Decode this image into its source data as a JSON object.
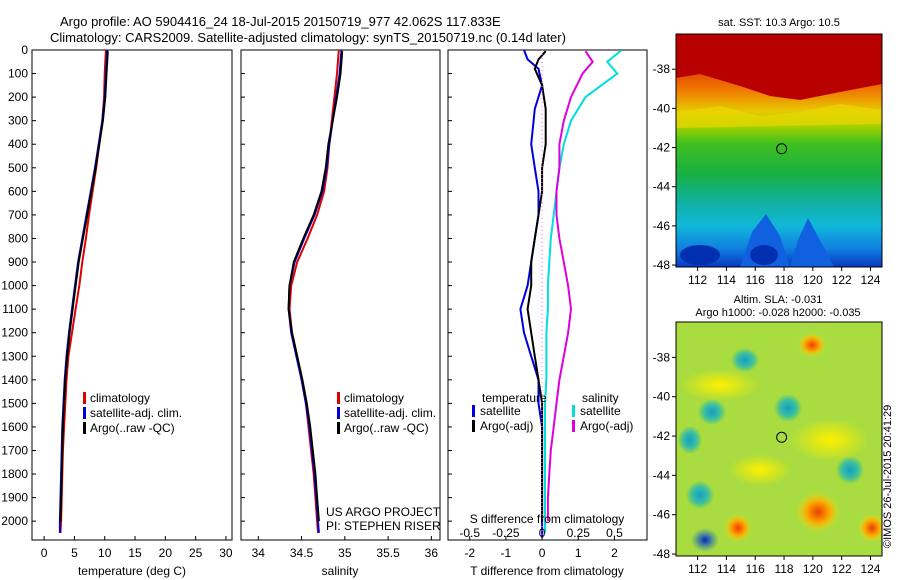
{
  "header": {
    "line1": "Argo profile: AO 5904416_24 18-Jul-2015 20150719_977 42.062S 117.833E",
    "line2": "Climatology: CARS2009. Satellite-adjusted climatology: synTS_20150719.nc (0.14d later)"
  },
  "credits": {
    "project": "US ARGO PROJECT",
    "pi": "PI: STEPHEN RISER",
    "imos": "©IMOS 26-Jul-2015 20:41:29"
  },
  "colors": {
    "climatology": "#dd0000",
    "satellite": "#0000dd",
    "argo": "#000000",
    "sal_satellite": "#00dddd",
    "sal_argo": "#dd00dd",
    "circle": "#000000"
  },
  "chart_data": [
    {
      "id": "temperature",
      "type": "line",
      "xlabel": "temperature (deg C)",
      "ylabel": "",
      "xlim": [
        -2,
        31
      ],
      "ylim": [
        2080,
        0
      ],
      "x_ticks": [
        0,
        5,
        10,
        15,
        20,
        25,
        30
      ],
      "x_tick_labels": [
        "0",
        "5",
        "10",
        "15",
        "20",
        "25",
        "30"
      ],
      "y_ticks": [
        0,
        100,
        200,
        300,
        400,
        500,
        600,
        700,
        800,
        900,
        1000,
        1100,
        1200,
        1300,
        1400,
        1500,
        1600,
        1700,
        1800,
        1900,
        2000
      ],
      "y_tick_labels": [
        "0",
        "100",
        "200",
        "300",
        "400",
        "500",
        "600",
        "700",
        "800",
        "900",
        "1000",
        "1100",
        "1200",
        "1300",
        "1400",
        "1500",
        "1600",
        "1700",
        "1800",
        "1900",
        "2000"
      ],
      "legend": [
        "climatology",
        "satellite-adj. clim.",
        "Argo(..raw -QC)"
      ],
      "legend_position": "lower-right",
      "series": [
        {
          "name": "climatology",
          "color_key": "climatology",
          "x": [
            10.2,
            10.1,
            10.0,
            9.9,
            9.6,
            9.1,
            8.6,
            8.0,
            7.4,
            6.9,
            6.3,
            5.8,
            5.2,
            4.6,
            4.0,
            3.7,
            3.5,
            3.3,
            3.1,
            3.0,
            2.9,
            2.8,
            2.7
          ],
          "y": [
            0,
            50,
            100,
            200,
            300,
            400,
            500,
            600,
            700,
            800,
            900,
            1000,
            1100,
            1200,
            1300,
            1400,
            1500,
            1600,
            1700,
            1800,
            1900,
            2000,
            2050
          ]
        },
        {
          "name": "satellite-adj. clim.",
          "color_key": "satellite",
          "x": [
            10.4,
            10.3,
            10.2,
            10.0,
            9.6,
            9.0,
            8.4,
            7.7,
            7.0,
            6.3,
            5.6,
            5.1,
            4.6,
            4.1,
            3.7,
            3.4,
            3.2,
            3.0,
            2.9,
            2.8,
            2.7,
            2.6,
            2.6
          ],
          "y": [
            0,
            50,
            100,
            200,
            300,
            400,
            500,
            600,
            700,
            800,
            900,
            1000,
            1100,
            1200,
            1300,
            1400,
            1500,
            1600,
            1700,
            1800,
            1900,
            2000,
            2050
          ]
        },
        {
          "name": "Argo(..raw -QC)",
          "color_key": "argo",
          "x": [
            10.5,
            10.4,
            10.3,
            10.1,
            9.7,
            9.1,
            8.5,
            7.8,
            7.1,
            6.4,
            5.7,
            5.2,
            4.7,
            4.2,
            3.8,
            3.5,
            3.3,
            3.1,
            3.0,
            2.9,
            2.8,
            2.7
          ],
          "y": [
            5,
            50,
            100,
            200,
            300,
            400,
            500,
            600,
            700,
            800,
            900,
            1000,
            1100,
            1200,
            1300,
            1400,
            1500,
            1600,
            1700,
            1800,
            1900,
            2000
          ]
        }
      ]
    },
    {
      "id": "salinity",
      "type": "line",
      "xlabel": "salinity",
      "ylabel": "",
      "xlim": [
        33.8,
        36.1
      ],
      "ylim": [
        2080,
        0
      ],
      "x_ticks": [
        34,
        34.5,
        35,
        35.5,
        36
      ],
      "x_tick_labels": [
        "34",
        "34.5",
        "35",
        "35.5",
        "36"
      ],
      "legend": [
        "climatology",
        "satellite-adj. clim.",
        "Argo(..raw -QC)"
      ],
      "legend_position": "lower-right",
      "series": [
        {
          "name": "climatology",
          "color_key": "climatology",
          "x": [
            34.93,
            34.92,
            34.91,
            34.88,
            34.85,
            34.82,
            34.8,
            34.76,
            34.68,
            34.57,
            34.45,
            34.38,
            34.36,
            34.39,
            34.45,
            34.5,
            34.55,
            34.58,
            34.61,
            34.64,
            34.66,
            34.68,
            34.69
          ],
          "y": [
            0,
            50,
            100,
            200,
            300,
            400,
            500,
            600,
            700,
            800,
            900,
            1000,
            1100,
            1200,
            1300,
            1400,
            1500,
            1600,
            1700,
            1800,
            1900,
            2000,
            2050
          ]
        },
        {
          "name": "satellite-adj. clim.",
          "color_key": "satellite",
          "x": [
            34.96,
            34.95,
            34.94,
            34.9,
            34.86,
            34.82,
            34.79,
            34.74,
            34.65,
            34.53,
            34.42,
            34.36,
            34.35,
            34.38,
            34.44,
            34.5,
            34.55,
            34.59,
            34.62,
            34.65,
            34.67,
            34.69,
            34.7
          ],
          "y": [
            0,
            50,
            100,
            200,
            300,
            400,
            500,
            600,
            700,
            800,
            900,
            1000,
            1100,
            1200,
            1300,
            1400,
            1500,
            1600,
            1700,
            1800,
            1900,
            2000,
            2050
          ]
        },
        {
          "name": "Argo(..raw -QC)",
          "color_key": "argo",
          "x": [
            34.97,
            34.96,
            34.95,
            34.91,
            34.86,
            34.81,
            34.78,
            34.73,
            34.64,
            34.52,
            34.41,
            34.36,
            34.35,
            34.39,
            34.45,
            34.51,
            34.56,
            34.6,
            34.63,
            34.66,
            34.68,
            34.7
          ],
          "y": [
            5,
            50,
            100,
            200,
            300,
            400,
            500,
            600,
            700,
            800,
            900,
            1000,
            1100,
            1200,
            1300,
            1400,
            1500,
            1600,
            1700,
            1800,
            1900,
            2000
          ]
        }
      ]
    },
    {
      "id": "difference",
      "type": "line",
      "xlabel": "T difference from climatology",
      "xlabel_top": "S difference from climatology",
      "xlim": [
        -2.6,
        2.9
      ],
      "ylim": [
        2080,
        0
      ],
      "x_ticks": [
        -2,
        -1,
        0,
        1,
        2
      ],
      "x_tick_labels": [
        "-2",
        "-1",
        "0",
        "1",
        "2"
      ],
      "x_ticks_top": [
        -0.5,
        -0.25,
        0,
        0.25,
        0.5
      ],
      "x_tick_labels_top": [
        "-0.5",
        "-0.25",
        "0",
        "0.25",
        "0.5"
      ],
      "legend_headers": [
        "temperature",
        "salinity"
      ],
      "legend": [
        "satellite",
        "Argo(-adj)",
        "satellite",
        "Argo(-adj)"
      ],
      "legend_position": "lower-center",
      "series": [
        {
          "name": "temperature satellite",
          "color_key": "satellite",
          "x": [
            -0.5,
            -0.4,
            -0.1,
            0.0,
            -0.2,
            -0.3,
            -0.2,
            -0.1,
            -0.1,
            -0.2,
            -0.3,
            -0.4,
            -0.6,
            -0.5,
            -0.3,
            -0.1,
            -0.1,
            0.0,
            0.0,
            0.0,
            0.0,
            0.0,
            0.0,
            0.0,
            0.0
          ],
          "y": [
            0,
            40,
            80,
            150,
            250,
            400,
            500,
            600,
            700,
            800,
            900,
            1000,
            1100,
            1200,
            1300,
            1400,
            1500,
            1600,
            1700,
            1800,
            1900,
            2000,
            2050,
            2060,
            2070
          ]
        },
        {
          "name": "temperature Argo(-adj)",
          "color_key": "argo",
          "x": [
            0.1,
            -0.1,
            -0.2,
            0.0,
            0.1,
            0.1,
            0.0,
            0.0,
            -0.1,
            -0.2,
            -0.3,
            -0.3,
            -0.4,
            -0.3,
            -0.2,
            -0.1,
            0.0,
            0.0,
            0.0,
            0.0,
            0.0,
            0.0
          ],
          "y": [
            5,
            40,
            80,
            150,
            250,
            400,
            500,
            600,
            700,
            800,
            900,
            1000,
            1100,
            1200,
            1300,
            1400,
            1500,
            1600,
            1700,
            1800,
            1900,
            2000
          ]
        },
        {
          "name": "salinity satellite",
          "color_key": "sal_satellite",
          "x": [
            0.55,
            0.45,
            0.52,
            0.3,
            0.2,
            0.15,
            0.12,
            0.1,
            0.08,
            0.06,
            0.05,
            0.04,
            0.04,
            0.03,
            0.03,
            0.03,
            0.02,
            0.02,
            0.02,
            0.02,
            0.02,
            0.02,
            0.02
          ],
          "y": [
            0,
            50,
            100,
            200,
            300,
            400,
            500,
            600,
            700,
            800,
            900,
            1000,
            1100,
            1200,
            1300,
            1400,
            1500,
            1600,
            1700,
            1800,
            1900,
            2000,
            2050
          ]
        },
        {
          "name": "salinity Argo(-adj)",
          "color_key": "sal_argo",
          "x": [
            0.3,
            0.35,
            0.28,
            0.2,
            0.15,
            0.12,
            0.12,
            0.1,
            0.1,
            0.12,
            0.15,
            0.18,
            0.2,
            0.18,
            0.15,
            0.12,
            0.1,
            0.08,
            0.06,
            0.05,
            0.04,
            0.04
          ],
          "y": [
            5,
            50,
            100,
            200,
            300,
            400,
            500,
            600,
            700,
            800,
            900,
            1000,
            1100,
            1200,
            1300,
            1400,
            1500,
            1600,
            1700,
            1800,
            1900,
            2000
          ]
        }
      ]
    },
    {
      "id": "sst_map",
      "type": "heatmap",
      "title": "sat. SST: 10.3  Argo: 10.5",
      "xlim": [
        110.5,
        124.8
      ],
      "ylim": [
        -48.1,
        -36.2
      ],
      "x_ticks": [
        112,
        114,
        116,
        118,
        120,
        122,
        124
      ],
      "x_tick_labels": [
        "112",
        "114",
        "116",
        "118",
        "120",
        "122",
        "124"
      ],
      "y_ticks": [
        -38,
        -40,
        -42,
        -44,
        -46,
        -48
      ],
      "y_tick_labels": [
        "-38",
        "-40",
        "-42",
        "-44",
        "-46",
        "-48"
      ],
      "marker": {
        "lon": 117.833,
        "lat": -42.062
      }
    },
    {
      "id": "sla_map",
      "type": "heatmap",
      "title": "Altim. SLA: -0.031",
      "subtitle": "Argo h1000: -0.028  h2000: -0.035",
      "xlim": [
        110.5,
        124.8
      ],
      "ylim": [
        -48.1,
        -36.2
      ],
      "x_ticks": [
        112,
        114,
        116,
        118,
        120,
        122,
        124
      ],
      "x_tick_labels": [
        "112",
        "114",
        "116",
        "118",
        "120",
        "122",
        "124"
      ],
      "y_ticks": [
        -38,
        -40,
        -42,
        -44,
        -46,
        -48
      ],
      "y_tick_labels": [
        "-38",
        "-40",
        "-42",
        "-44",
        "-46",
        "-48"
      ],
      "marker": {
        "lon": 117.833,
        "lat": -42.062
      }
    }
  ]
}
